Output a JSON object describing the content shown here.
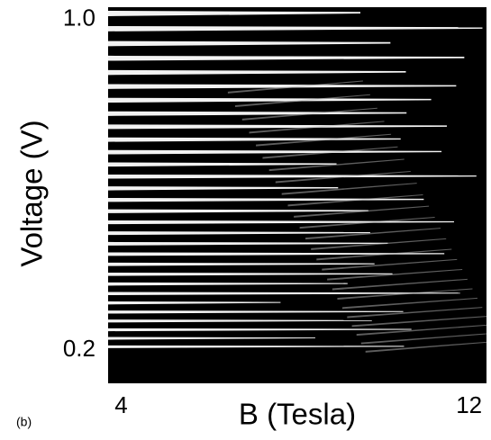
{
  "chart_data": {
    "type": "image",
    "panel_label": "(b)",
    "xlabel": "B (Tesla)",
    "ylabel": "Voltage (V)",
    "xlim": [
      3.7,
      12.4
    ],
    "xticks": [
      4,
      12
    ],
    "ylim": [
      0.12,
      1.03
    ],
    "yticks": [
      {
        "value": 1,
        "label": "1.0"
      },
      0.2
    ]
  }
}
